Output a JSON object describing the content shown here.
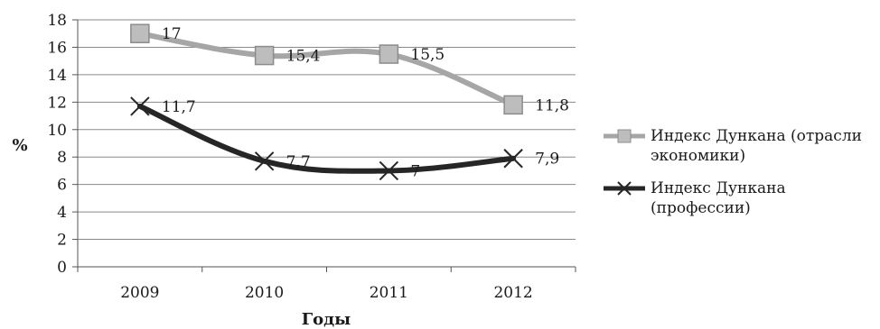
{
  "chart_data": {
    "type": "line",
    "xlabel": "Годы",
    "ylabel": "%",
    "categories": [
      "2009",
      "2010",
      "2011",
      "2012"
    ],
    "ylim": [
      0,
      18
    ],
    "yticks": [
      "0",
      "2",
      "4",
      "6",
      "8",
      "10",
      "12",
      "14",
      "16",
      "18"
    ],
    "grid": "horizontal",
    "legend_position": "right",
    "series": [
      {
        "name": "Индекс Дункана (отрасли экономики)",
        "name_lines": [
          "Индекс Дункана (отрасли",
          "экономики)"
        ],
        "values": [
          17,
          15.4,
          15.5,
          11.8
        ],
        "labels": [
          "17",
          "15,4",
          "15,5",
          "11,8"
        ],
        "color": "#a6a6a6",
        "marker": "square"
      },
      {
        "name": "Индекс Дункана (профессии)",
        "name_lines": [
          "Индекс Дункана",
          "(профессии)"
        ],
        "values": [
          11.7,
          7.7,
          7,
          7.9
        ],
        "labels": [
          "11,7",
          "7,7",
          "7",
          "7,9"
        ],
        "color": "#262626",
        "marker": "x"
      }
    ]
  }
}
